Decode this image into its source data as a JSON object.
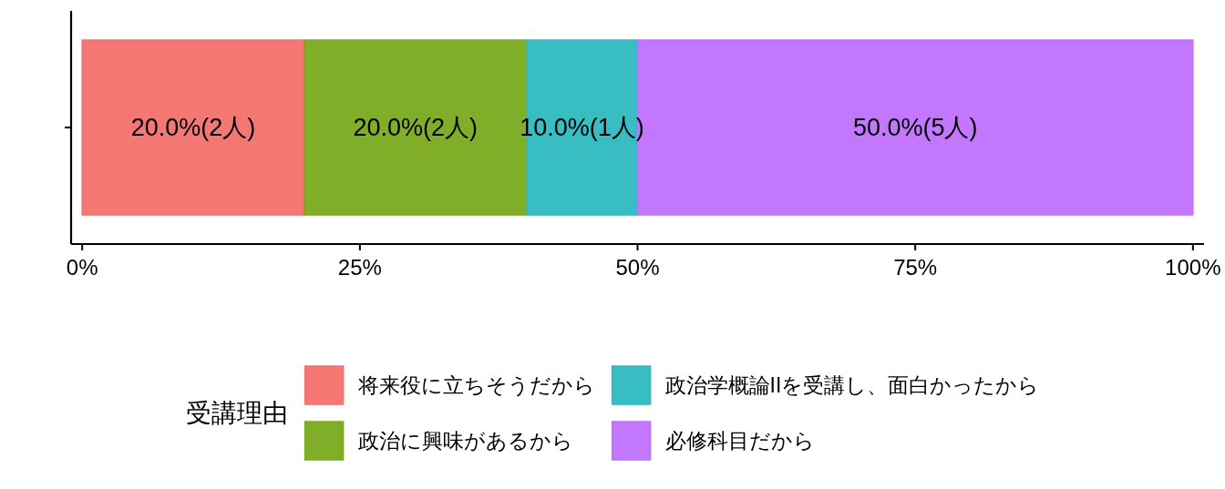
{
  "chart_data": {
    "type": "bar",
    "orientation": "horizontal",
    "stacked": true,
    "categories": [
      null
    ],
    "series": [
      {
        "name": "将来役に立ちそうだから",
        "color": "#f4706c",
        "values": [
          20
        ],
        "value_labels": [
          "20.0%(2人)"
        ]
      },
      {
        "name": "政治に興味があるから",
        "color": "#7aaa1e",
        "values": [
          20
        ],
        "value_labels": [
          "20.0%(2人)"
        ]
      },
      {
        "name": "政治学概論IIを受講し、面白かったから",
        "color": "#2dbabf",
        "values": [
          10
        ],
        "value_labels": [
          "10.0%(1人)"
        ]
      },
      {
        "name": "必修科目だから",
        "color": "#c070ff",
        "values": [
          50
        ],
        "value_labels": [
          "50.0%(5人)"
        ]
      }
    ],
    "xlim": [
      -1,
      101
    ],
    "xticks": [
      {
        "value": 0,
        "label": "0%"
      },
      {
        "value": 25,
        "label": "25%"
      },
      {
        "value": 50,
        "label": "50%"
      },
      {
        "value": 75,
        "label": "75%"
      },
      {
        "value": 100,
        "label": "100%"
      }
    ],
    "tick_labels": "x",
    "legend": "bottom",
    "legend_title": "受講理由"
  }
}
